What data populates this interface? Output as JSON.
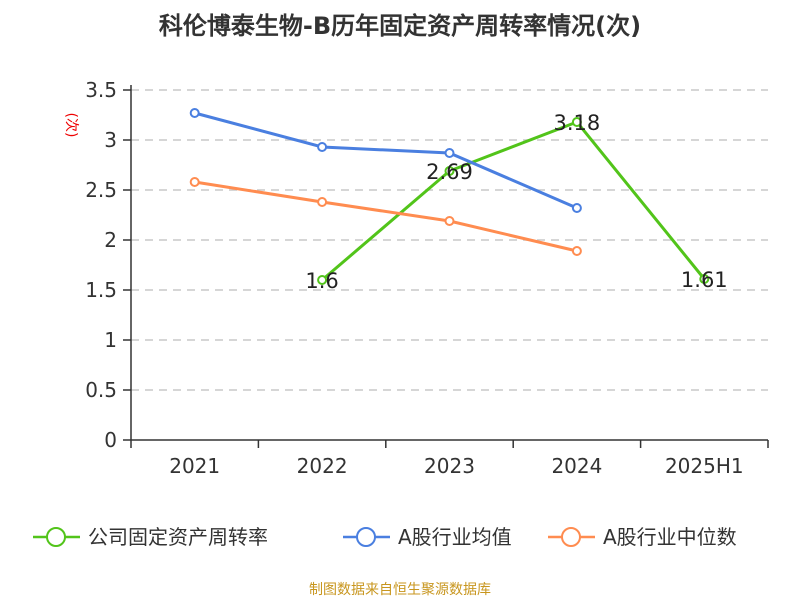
{
  "title": "科伦博泰生物-B历年固定资产周转率情况(次)",
  "source": "制图数据来自恒生聚源数据库",
  "chart_data": {
    "type": "line",
    "title": "科伦博泰生物-B历年固定资产周转率情况(次)",
    "ylabel": "(次)",
    "categories": [
      "2021",
      "2022",
      "2023",
      "2024",
      "2025H1"
    ],
    "ylim": [
      0,
      3.5
    ],
    "yticks": [
      "0",
      "0.5",
      "1",
      "1.5",
      "2",
      "2.5",
      "3",
      "3.5"
    ],
    "grid": true,
    "legend_position": "bottom",
    "series": [
      {
        "name": "公司固定资产周转率",
        "color": "#52c41a",
        "values": [
          null,
          1.6,
          2.69,
          3.18,
          1.61
        ],
        "labels": [
          "",
          "1.6",
          "2.69",
          "3.18",
          "1.61"
        ]
      },
      {
        "name": "A股行业均值",
        "color": "#4a7fe0",
        "values": [
          3.27,
          2.93,
          2.87,
          2.32,
          null
        ]
      },
      {
        "name": "A股行业中位数",
        "color": "#ff8c50",
        "values": [
          2.58,
          2.38,
          2.19,
          1.89,
          null
        ]
      }
    ]
  }
}
